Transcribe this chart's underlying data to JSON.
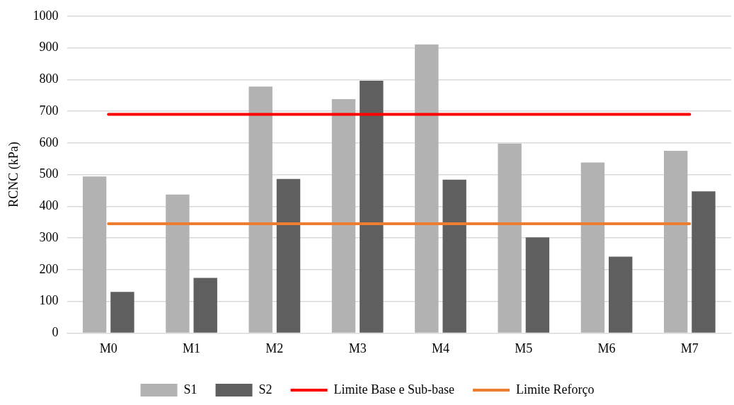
{
  "chart_data": {
    "type": "bar",
    "ylabel": "RCNC (kPa)",
    "categories": [
      "M0",
      "M1",
      "M2",
      "M3",
      "M4",
      "M5",
      "M6",
      "M7"
    ],
    "series": [
      {
        "name": "S1",
        "color": "#b2b2b2",
        "values": [
          494,
          437,
          778,
          738,
          911,
          598,
          538,
          575
        ]
      },
      {
        "name": "S2",
        "color": "#5f5f5f",
        "values": [
          130,
          174,
          486,
          796,
          484,
          302,
          241,
          447
        ]
      }
    ],
    "ref_lines": [
      {
        "axis": "y",
        "value": 690,
        "label": "Limite Base e Sub-base",
        "color": "#ff0000"
      },
      {
        "axis": "y",
        "value": 345,
        "label": "Limite Reforço",
        "color": "#ed7d31"
      }
    ],
    "ylim": [
      0,
      1000
    ],
    "yticks": [
      0,
      100,
      200,
      300,
      400,
      500,
      600,
      700,
      800,
      900,
      1000
    ],
    "grid": "y",
    "legend": "bottom"
  }
}
